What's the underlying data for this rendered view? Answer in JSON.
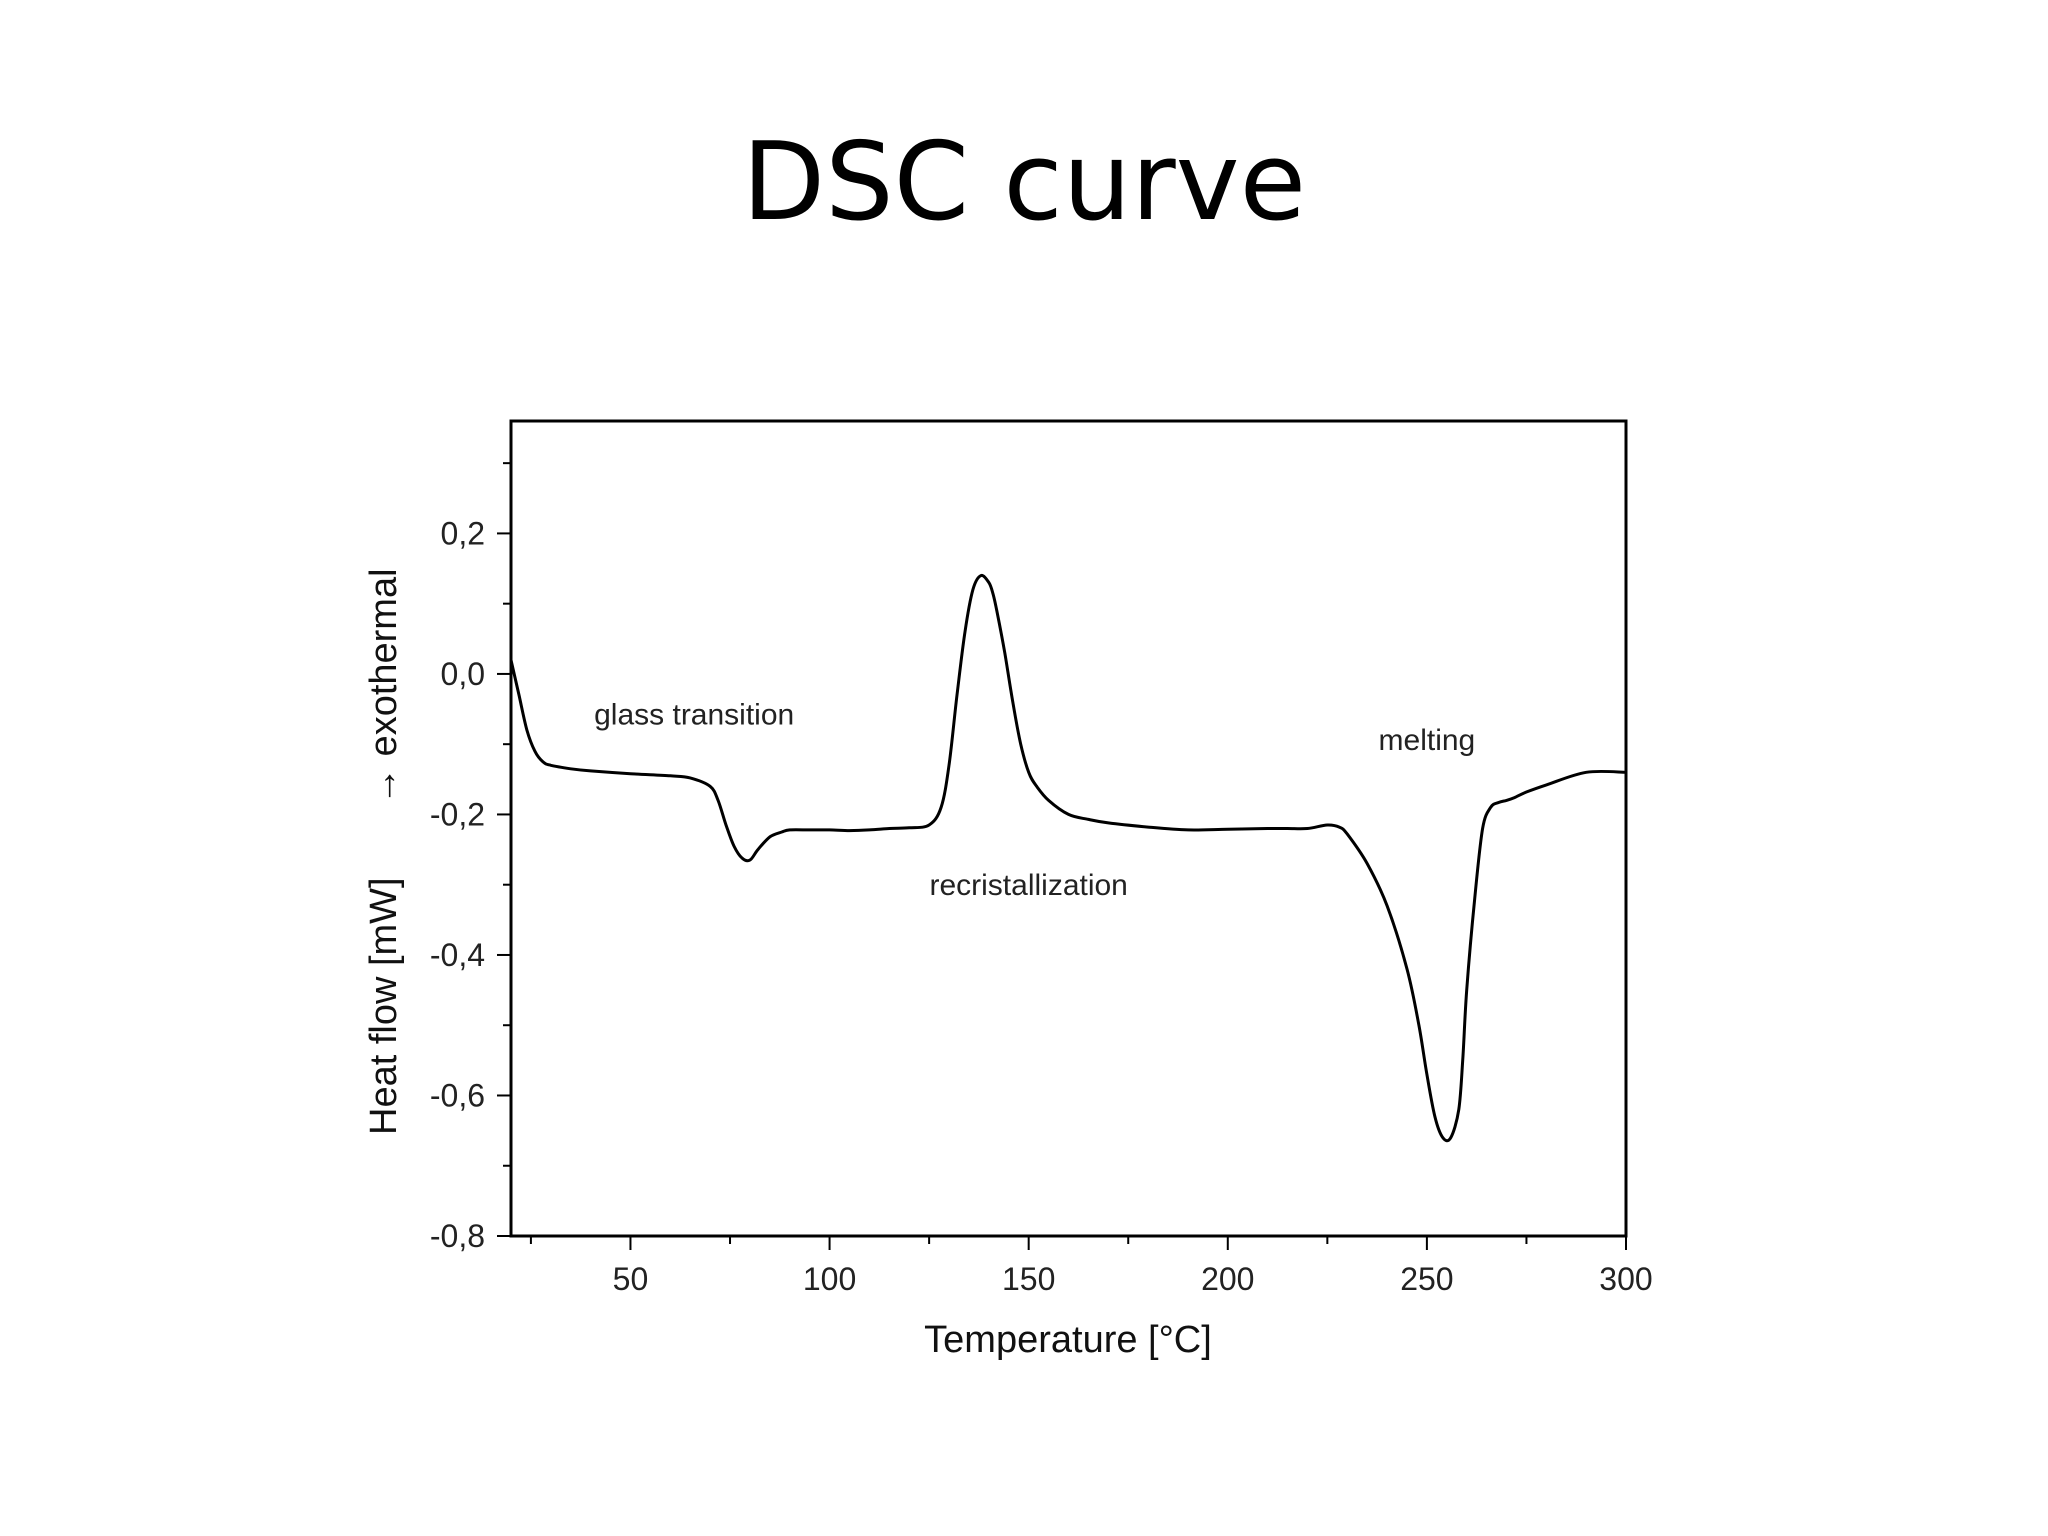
{
  "slide": {
    "title": "DSC curve"
  },
  "chart_data": {
    "type": "line",
    "title": "",
    "xlabel": "Temperature [°C]",
    "ylabel": "Heat flow [mW]",
    "ylabel_secondary": "→ exothermal",
    "xlim": [
      20,
      300
    ],
    "ylim": [
      -0.8,
      0.36
    ],
    "x_ticks": [
      50,
      100,
      150,
      200,
      250,
      300
    ],
    "x_minor_ticks": [
      25,
      75,
      125,
      175,
      225,
      275
    ],
    "x_tick_labels": [
      "50",
      "100",
      "150",
      "200",
      "250",
      "300"
    ],
    "y_ticks": [
      -0.8,
      -0.6,
      -0.4,
      -0.2,
      0.0,
      0.2
    ],
    "y_minor_ticks": [
      -0.7,
      -0.5,
      -0.3,
      -0.1,
      0.1,
      0.3
    ],
    "y_tick_labels": [
      "-0,8",
      "-0,6",
      "-0,4",
      "-0,2",
      "0,0",
      "0,2"
    ],
    "grid": false,
    "line_color": "#000000",
    "series": [
      {
        "x": [
          20,
          22,
          24,
          26,
          28,
          30,
          35,
          40,
          50,
          60,
          65,
          70,
          72,
          74,
          76,
          78,
          80,
          82,
          85,
          88,
          90,
          95,
          100,
          105,
          110,
          115,
          120,
          125,
          128,
          130,
          132,
          134,
          136,
          138,
          140,
          141,
          142,
          144,
          146,
          148,
          150,
          152,
          155,
          160,
          165,
          170,
          180,
          190,
          200,
          210,
          215,
          220,
          225,
          228,
          230,
          235,
          240,
          245,
          248,
          250,
          252,
          254,
          256,
          258,
          259,
          260,
          262,
          264,
          266,
          268,
          270,
          272,
          275,
          280,
          290,
          300
        ],
        "y": [
          0.02,
          -0.03,
          -0.08,
          -0.11,
          -0.125,
          -0.13,
          -0.135,
          -0.138,
          -0.142,
          -0.145,
          -0.148,
          -0.16,
          -0.18,
          -0.215,
          -0.245,
          -0.262,
          -0.265,
          -0.25,
          -0.232,
          -0.225,
          -0.222,
          -0.222,
          -0.222,
          -0.223,
          -0.222,
          -0.22,
          -0.219,
          -0.215,
          -0.19,
          -0.13,
          -0.03,
          0.06,
          0.12,
          0.14,
          0.13,
          0.115,
          0.09,
          0.03,
          -0.04,
          -0.1,
          -0.14,
          -0.16,
          -0.18,
          -0.2,
          -0.207,
          -0.212,
          -0.218,
          -0.222,
          -0.221,
          -0.22,
          -0.22,
          -0.22,
          -0.215,
          -0.218,
          -0.228,
          -0.27,
          -0.33,
          -0.42,
          -0.5,
          -0.57,
          -0.63,
          -0.66,
          -0.66,
          -0.62,
          -0.55,
          -0.45,
          -0.32,
          -0.22,
          -0.19,
          -0.183,
          -0.18,
          -0.176,
          -0.168,
          -0.158,
          -0.14,
          -0.14
        ]
      }
    ],
    "annotations": [
      {
        "text": "glass transition",
        "x": 66,
        "y": -0.072
      },
      {
        "text": "recristallization",
        "x": 150,
        "y": -0.315
      },
      {
        "text": "melting",
        "x": 250,
        "y": -0.108
      }
    ]
  }
}
